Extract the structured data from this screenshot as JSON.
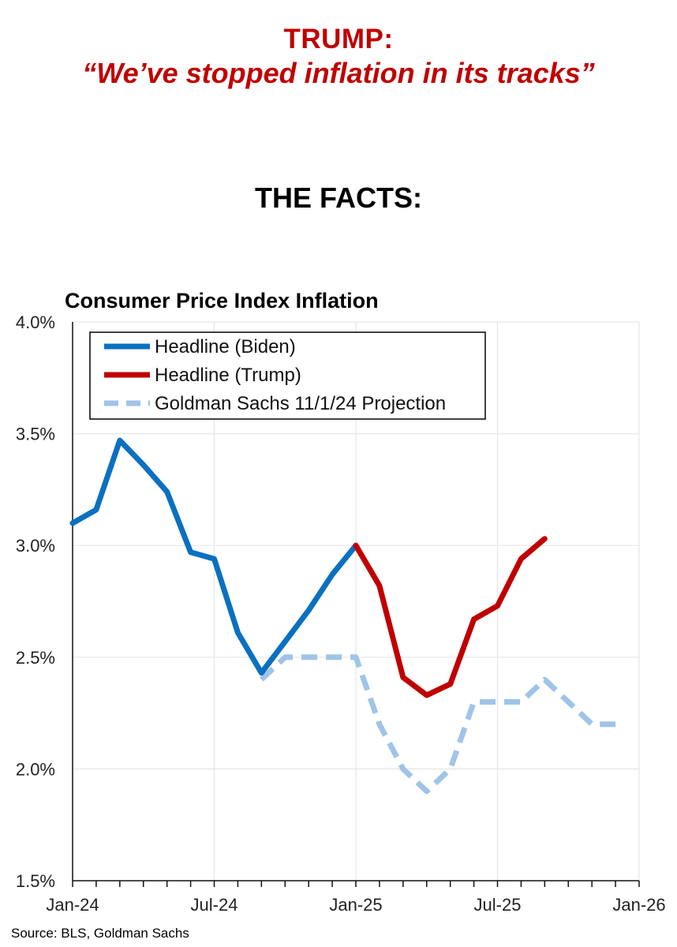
{
  "header": {
    "line1": "TRUMP:",
    "line2": "“We’ve stopped inflation in its tracks”",
    "facts": "THE FACTS:"
  },
  "source": "Source: BLS, Goldman Sachs",
  "colors": {
    "red": "#c00000",
    "blue": "#0a70c0",
    "lightblue": "#9fc4e8",
    "grid": "#e6e6e6"
  },
  "chart_data": {
    "type": "line",
    "title": "Consumer Price Index Inflation",
    "ylim": [
      1.5,
      4.0
    ],
    "xlim": [
      0,
      24
    ],
    "y_ticks": [
      {
        "value": 1.5,
        "label": "1.5%"
      },
      {
        "value": 2.0,
        "label": "2.0%"
      },
      {
        "value": 2.5,
        "label": "2.5%"
      },
      {
        "value": 3.0,
        "label": "3.0%"
      },
      {
        "value": 3.5,
        "label": "3.5%"
      },
      {
        "value": 4.0,
        "label": "4.0%"
      }
    ],
    "x_ticks": [
      {
        "value": 0,
        "label": "Jan-24"
      },
      {
        "value": 6,
        "label": "Jul-24"
      },
      {
        "value": 12,
        "label": "Jan-25"
      },
      {
        "value": 18,
        "label": "Jul-25"
      },
      {
        "value": 24,
        "label": "Jan-26"
      }
    ],
    "legend_position": "top-left",
    "series": [
      {
        "name": "Headline (Biden)",
        "color": "#0a70c0",
        "dashed": false,
        "x": [
          0,
          1,
          2,
          3,
          4,
          5,
          6,
          7,
          8,
          9,
          10,
          11,
          12
        ],
        "values": [
          3.1,
          3.16,
          3.47,
          3.36,
          3.24,
          2.97,
          2.94,
          2.61,
          2.43,
          2.57,
          2.71,
          2.87,
          3.0
        ]
      },
      {
        "name": "Headline (Trump)",
        "color": "#c00000",
        "dashed": false,
        "x": [
          12,
          13,
          14,
          15,
          16,
          17,
          18,
          19,
          20
        ],
        "values": [
          3.0,
          2.82,
          2.41,
          2.33,
          2.38,
          2.67,
          2.73,
          2.94,
          3.03
        ]
      },
      {
        "name": "Goldman Sachs 11/1/24 Projection",
        "color": "#9fc4e8",
        "dashed": true,
        "x": [
          8,
          9,
          10,
          11,
          12,
          13,
          14,
          15,
          16,
          17,
          18,
          19,
          20,
          21,
          22,
          23
        ],
        "values": [
          2.4,
          2.5,
          2.5,
          2.5,
          2.5,
          2.2,
          2.0,
          1.9,
          2.0,
          2.3,
          2.3,
          2.3,
          2.4,
          2.3,
          2.2,
          2.2
        ]
      }
    ]
  }
}
